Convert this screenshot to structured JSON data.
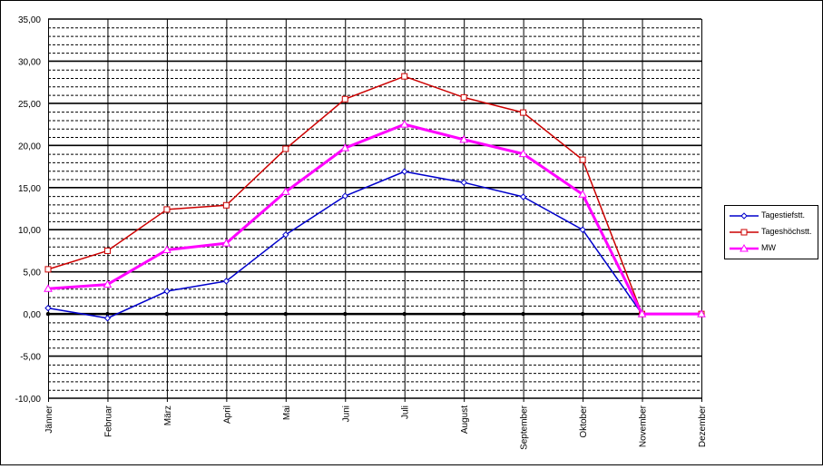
{
  "chart_data": {
    "type": "line",
    "categories": [
      "Jänner",
      "Februar",
      "März",
      "April",
      "Mai",
      "Juni",
      "Juli",
      "August",
      "September",
      "Oktober",
      "November",
      "Dezember"
    ],
    "ylim": [
      -10,
      35
    ],
    "yticks": [
      "-10,00",
      "-5,00",
      "0,00",
      "5,00",
      "10,00",
      "15,00",
      "20,00",
      "25,00",
      "30,00",
      "35,00"
    ],
    "ytick_values": [
      -10,
      -5,
      0,
      5,
      10,
      15,
      20,
      25,
      30,
      35
    ],
    "grid": true,
    "legend_position": "right",
    "series": [
      {
        "name": "Tagestiefstt.",
        "color": "#0000cc",
        "marker": "diamond",
        "values": [
          0.7,
          -0.5,
          2.7,
          3.9,
          9.4,
          14.0,
          16.9,
          15.6,
          13.9,
          10.0,
          0.0,
          0.0
        ]
      },
      {
        "name": "Tageshöchstt.",
        "color": "#cc0000",
        "marker": "square",
        "values": [
          5.3,
          7.5,
          12.4,
          12.9,
          19.6,
          25.5,
          28.2,
          25.7,
          23.9,
          18.3,
          0.0,
          0.0
        ]
      },
      {
        "name": "MW",
        "color": "#ff00ff",
        "marker": "triangle",
        "values": [
          3.0,
          3.5,
          7.6,
          8.4,
          14.5,
          19.7,
          22.5,
          20.7,
          19.0,
          14.2,
          0.0,
          0.0
        ]
      }
    ]
  }
}
